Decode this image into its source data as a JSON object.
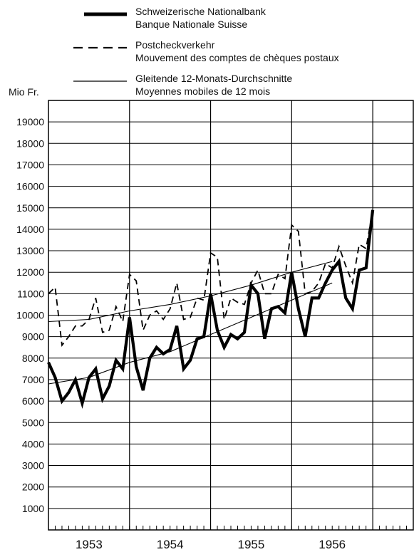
{
  "chart_data": {
    "type": "line",
    "ylabel": "Mio Fr.",
    "ylim": [
      0,
      20000
    ],
    "yticks": [
      1000,
      2000,
      3000,
      4000,
      5000,
      6000,
      7000,
      8000,
      9000,
      10000,
      11000,
      12000,
      13000,
      14000,
      15000,
      16000,
      17000,
      18000,
      19000
    ],
    "xlim": [
      1952.5,
      1957.0
    ],
    "year_labels": [
      "1953",
      "1954",
      "1955",
      "1956"
    ],
    "year_gridlines": [
      1953.5,
      1954.5,
      1955.5,
      1956.5
    ],
    "grid": true,
    "legend": [
      {
        "line1": "Schweizerische Nationalbank",
        "line2": "Banque Nationale Suisse",
        "style": "thick"
      },
      {
        "line1": "Postcheckverkehr",
        "line2": "Mouvement des comptes de chèques postaux",
        "style": "dashed"
      },
      {
        "line1": "Gleitende 12-Monats-Durchschnitte",
        "line2": "Moyennes mobiles de 12 mois",
        "style": "thin"
      }
    ],
    "series": [
      {
        "style": "thick",
        "x": [
          1952.5,
          1952.583,
          1952.667,
          1952.75,
          1952.833,
          1952.917,
          1953.0,
          1953.083,
          1953.167,
          1953.25,
          1953.333,
          1953.417,
          1953.5,
          1953.583,
          1953.667,
          1953.75,
          1953.833,
          1953.917,
          1954.0,
          1954.083,
          1954.167,
          1954.25,
          1954.333,
          1954.417,
          1954.5,
          1954.583,
          1954.667,
          1954.75,
          1954.833,
          1954.917,
          1955.0,
          1955.083,
          1955.167,
          1955.25,
          1955.333,
          1955.417,
          1955.5,
          1955.583,
          1955.667,
          1955.75,
          1955.833,
          1955.917,
          1956.0,
          1956.083,
          1956.167,
          1956.25,
          1956.333,
          1956.417,
          1956.5
        ],
        "values": [
          7800,
          7100,
          6000,
          6400,
          7000,
          5900,
          7100,
          7500,
          6100,
          6700,
          7900,
          7500,
          9900,
          7600,
          6500,
          8000,
          8500,
          8200,
          8400,
          9500,
          7500,
          7900,
          8900,
          9000,
          11000,
          9300,
          8500,
          9100,
          8900,
          9200,
          11400,
          11000,
          8900,
          10300,
          10400,
          10100,
          12000,
          10300,
          9000,
          10800,
          10800,
          11500,
          12100,
          12500,
          10800,
          10300,
          12100,
          12200,
          14900
        ]
      },
      {
        "style": "dashed",
        "x": [
          1952.5,
          1952.583,
          1952.667,
          1952.75,
          1952.833,
          1952.917,
          1953.0,
          1953.083,
          1953.167,
          1953.25,
          1953.333,
          1953.417,
          1953.5,
          1953.583,
          1953.667,
          1953.75,
          1953.833,
          1953.917,
          1954.0,
          1954.083,
          1954.167,
          1954.25,
          1954.333,
          1954.417,
          1954.5,
          1954.583,
          1954.667,
          1954.75,
          1954.833,
          1954.917,
          1955.0,
          1955.083,
          1955.167,
          1955.25,
          1955.333,
          1955.417,
          1955.5,
          1955.583,
          1955.667,
          1955.75,
          1955.833,
          1955.917,
          1956.0,
          1956.083,
          1956.167,
          1956.25,
          1956.333,
          1956.417,
          1956.5
        ],
        "values": [
          11000,
          11300,
          8600,
          9000,
          9500,
          9500,
          9800,
          10800,
          9200,
          9300,
          10400,
          9700,
          11900,
          11600,
          9300,
          10000,
          10200,
          9800,
          10300,
          11500,
          9800,
          9900,
          10800,
          10700,
          12900,
          12700,
          9800,
          10800,
          10600,
          10500,
          11500,
          12100,
          11000,
          11000,
          11900,
          11700,
          14200,
          13900,
          11000,
          11100,
          11500,
          12400,
          12200,
          13200,
          12300,
          11500,
          13300,
          13100,
          14900
        ]
      },
      {
        "style": "thin",
        "x": [
          1952.5,
          1953.0,
          1953.5,
          1954.0,
          1954.5,
          1955.0,
          1955.5,
          1956.0
        ],
        "values": [
          6800,
          7100,
          7800,
          8300,
          9100,
          9900,
          10700,
          11500
        ]
      },
      {
        "style": "thin",
        "x": [
          1952.5,
          1953.0,
          1953.5,
          1954.0,
          1954.5,
          1955.0,
          1955.5,
          1956.0
        ],
        "values": [
          9700,
          9800,
          10200,
          10500,
          10900,
          11400,
          12000,
          12500
        ]
      }
    ]
  }
}
